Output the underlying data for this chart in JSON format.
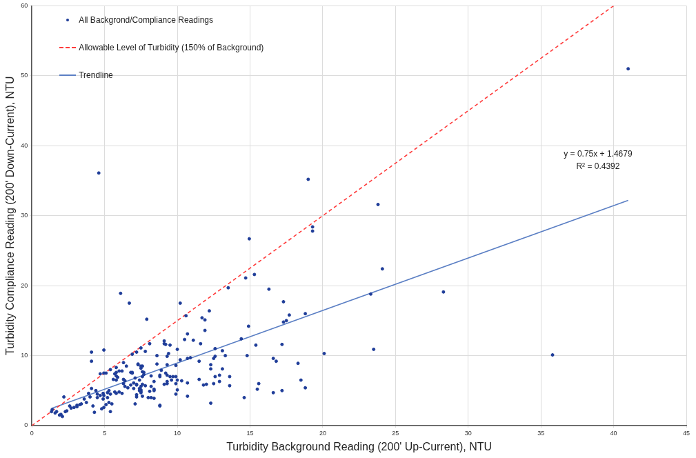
{
  "chart_data": {
    "type": "scatter",
    "xlabel": "Turbidity Background Reading (200' Up-Current), NTU",
    "ylabel": "Turbidity Compliance Reading (200' Down-Current), NTU",
    "xlim": [
      0,
      45
    ],
    "xticks": [
      0,
      5,
      10,
      15,
      20,
      25,
      30,
      35,
      40,
      45
    ],
    "ylim": [
      0,
      60
    ],
    "yticks": [
      0,
      10,
      20,
      30,
      40,
      50,
      60
    ],
    "grid": true,
    "legend": "top left",
    "annotations": [
      "y = 0.75x + 1.4679",
      "R² = 0.4392"
    ],
    "series": [
      {
        "name": "All Backgrond/Compliance Readings",
        "marker": "circle",
        "color": "#1f3d99",
        "x": [
          4.6,
          41,
          19.0,
          23.8,
          19.3,
          19.3,
          14.95,
          24.1,
          14.7,
          15.3,
          13.5,
          16.3,
          23.3,
          17.3,
          12.2,
          11.7,
          11.9,
          11.9,
          17.7,
          17.3,
          17.5,
          18.8,
          14.9,
          14.4,
          15.4,
          17.2,
          23.5,
          20.1,
          14.8,
          12.6,
          13.1,
          13.3,
          12.6,
          12.5,
          16.6,
          16.8,
          18.3,
          12.3,
          12.3,
          13.1,
          12.6,
          12.9,
          13.6,
          12.9,
          11.8,
          12.0,
          12.5,
          13.6,
          15.6,
          15.5,
          16.6,
          17.2,
          18.5,
          18.8,
          12.3,
          14.6,
          28.3,
          35.8,
          10.2,
          7.9,
          10.6,
          10.7,
          10.5,
          11.1,
          11.6,
          9.1,
          9.1,
          9.2,
          9.5,
          8.1,
          7.8,
          7.5,
          6.9,
          7.2,
          9.4,
          9.3,
          8.6,
          10.0,
          10.2,
          10.7,
          10.9,
          11.5,
          7.3,
          7.5,
          7.6,
          8.6,
          9.3,
          9.9,
          8.9,
          9.2,
          9.3,
          9.5,
          9.7,
          9.9,
          10.0,
          8.8,
          8.8,
          7.6,
          7.6,
          8.2,
          6.9,
          7.1,
          7.2,
          7.6,
          7.5,
          7.4,
          7.5,
          7.5,
          7.8,
          8.4,
          8.4,
          7.2,
          7.2,
          7.6,
          8.0,
          8.4,
          7.1,
          8.8,
          9.1,
          9.3,
          9.3,
          9.6,
          9.9,
          10.0,
          9.9,
          10.7,
          10.7,
          10.3,
          11.5,
          6.1,
          6.7,
          4.1,
          4.1,
          4.95,
          5.8,
          5.4,
          5.8,
          6.0,
          6.2,
          6.3,
          4.7,
          4.95,
          5.1,
          5.7,
          5.8,
          5.9,
          5.6,
          5.8,
          6.3,
          6.4,
          6.3,
          6.4,
          6.5,
          6.8,
          6.9,
          7.3,
          7.5,
          7.7,
          7.7,
          7.4,
          7.0,
          7.2,
          6.8,
          6.6,
          7.0,
          7.4,
          7.5,
          8.2,
          8.4,
          8.1,
          8.2,
          8.8,
          4.1,
          4.4,
          4.5,
          4.7,
          4.9,
          4.95,
          5.2,
          5.3,
          5.4,
          5.7,
          5.8,
          6.0,
          6.2,
          4.5,
          4.9,
          5.2,
          5.3,
          5.5,
          5.1,
          5.4,
          4.8,
          4.95,
          4.3,
          3.9,
          4.0,
          3.6,
          3.75,
          3.4,
          3.1,
          3.1,
          3.3,
          2.9,
          2.7,
          2.4,
          2.3,
          2.6,
          2.2,
          2.1,
          2.0,
          1.9,
          1.7,
          1.6,
          1.4,
          4.2,
          1.35
        ],
        "values": [
          36.1,
          51,
          35.2,
          31.6,
          28.4,
          27.8,
          26.7,
          22.4,
          21.1,
          21.6,
          19.7,
          19.5,
          18.8,
          17.7,
          16.4,
          15.4,
          15.1,
          13.6,
          15.8,
          14.8,
          15.0,
          16.0,
          14.2,
          12.4,
          11.5,
          11.6,
          10.9,
          10.3,
          10.0,
          11.0,
          10.7,
          10.0,
          9.9,
          9.6,
          9.6,
          9.2,
          8.9,
          8.7,
          8.1,
          8.1,
          7.0,
          7.2,
          7.0,
          6.3,
          5.8,
          5.9,
          6.0,
          5.7,
          6.0,
          5.2,
          4.7,
          5.0,
          6.5,
          5.4,
          3.2,
          4.0,
          19.1,
          10.1,
          17.5,
          15.2,
          15.7,
          13.1,
          12.3,
          12.2,
          11.7,
          12.1,
          11.7,
          11.6,
          11.5,
          11.7,
          10.6,
          11.1,
          10.2,
          10.5,
          10.3,
          9.9,
          10.0,
          10.9,
          9.4,
          9.6,
          9.7,
          9.2,
          8.7,
          8.5,
          8.5,
          8.8,
          8.7,
          8.6,
          7.9,
          7.5,
          7.2,
          7.0,
          7.0,
          7.0,
          6.5,
          7.2,
          7.0,
          7.7,
          7.0,
          7.1,
          7.6,
          6.8,
          5.9,
          5.9,
          5.6,
          5.3,
          5.1,
          4.9,
          5.7,
          6.3,
          5.2,
          4.4,
          4.1,
          4.2,
          4.0,
          3.9,
          3.1,
          2.8,
          5.9,
          6.0,
          6.3,
          6.5,
          6.0,
          5.1,
          4.5,
          6.1,
          4.2,
          6.4,
          6.6,
          18.9,
          17.5,
          10.5,
          9.2,
          10.8,
          8.3,
          8.0,
          7.6,
          7.8,
          7.8,
          9.0,
          7.4,
          7.5,
          7.5,
          7.4,
          7.1,
          6.9,
          6.6,
          6.5,
          6.6,
          6.4,
          6.0,
          5.6,
          8.5,
          7.6,
          7.5,
          8.8,
          8.2,
          7.6,
          7.3,
          6.5,
          6.1,
          5.8,
          5.8,
          5.4,
          5.3,
          5.0,
          4.7,
          5.6,
          5.0,
          4.9,
          4.0,
          2.9,
          5.3,
          5.0,
          4.5,
          4.3,
          4.6,
          4.3,
          4.7,
          5.0,
          4.5,
          4.8,
          4.6,
          4.8,
          4.6,
          4.0,
          3.8,
          4.0,
          3.3,
          3.1,
          3.0,
          2.0,
          2.4,
          2.6,
          1.9,
          4.6,
          4.1,
          3.8,
          3.3,
          3.1,
          2.9,
          2.7,
          3.0,
          2.6,
          2.5,
          2.1,
          2.0,
          2.8,
          4.1,
          1.3,
          1.6,
          1.5,
          2.0,
          1.8,
          2.3,
          2.8,
          2.0
        ]
      },
      {
        "name": "Allowable Level of Turbidity (150% of Background)",
        "type": "line",
        "marker": "none",
        "line_style": "dashed",
        "color": "#ff3b3b",
        "x": [
          0,
          40
        ],
        "values": [
          0,
          60
        ]
      },
      {
        "name": "Trendline",
        "type": "line",
        "marker": "none",
        "line_style": "solid",
        "color": "#5b7fc4",
        "x": [
          1.4,
          41
        ],
        "values": [
          2.5,
          32.2
        ]
      }
    ]
  }
}
